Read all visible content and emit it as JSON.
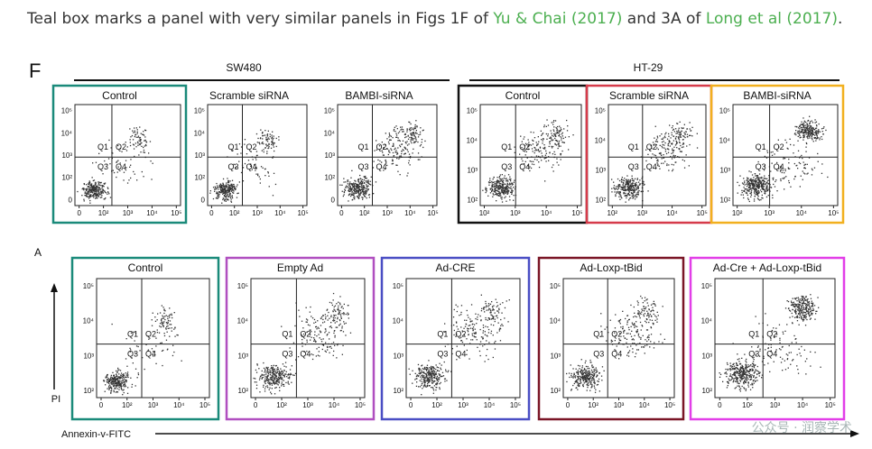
{
  "caption": {
    "prefix": "Teal box marks a panel with very similar panels in Figs 1F of ",
    "link1": "Yu & Chai (2017)",
    "middle": " and 3A of ",
    "link2": "Long et al (2017)",
    "suffix": "."
  },
  "figF": {
    "letter": "F",
    "groups": [
      "SW480",
      "HT-29"
    ],
    "panels": [
      {
        "title": "Control",
        "box": "#1a8a7a",
        "density": "low"
      },
      {
        "title": "Scramble siRNA",
        "box": "",
        "density": "low"
      },
      {
        "title": "BAMBI-siRNA",
        "box": "",
        "density": "mid"
      },
      {
        "title": "Control",
        "box": "#111111",
        "density": "mid"
      },
      {
        "title": "Scramble siRNA",
        "box": "#d63b4a",
        "density": "mid"
      },
      {
        "title": "BAMBI-siRNA",
        "box": "#f2b01e",
        "density": "high"
      }
    ],
    "quadrants": [
      "Q1",
      "Q2",
      "Q3",
      "Q4"
    ],
    "x_ticks_sw": [
      "0",
      "10²",
      "10³",
      "10⁴",
      "10⁵"
    ],
    "x_ticks_ht": [
      "10²",
      "10³",
      "10⁴",
      "10⁵"
    ],
    "y_ticks_sw": [
      "10⁵",
      "10⁴",
      "10³",
      "10²",
      "0"
    ],
    "y_ticks_ht": [
      "10⁵",
      "10⁴",
      "10³",
      "10²"
    ]
  },
  "figA": {
    "letter": "A",
    "panels": [
      {
        "title": "Control",
        "box": "#1a8a7a",
        "density": "low"
      },
      {
        "title": "Empty Ad",
        "box": "#b04fc0",
        "density": "mid"
      },
      {
        "title": "Ad-CRE",
        "box": "#4a4ec4",
        "density": "mid"
      },
      {
        "title": "Ad-Loxp-tBid",
        "box": "#7a1526",
        "density": "mid"
      },
      {
        "title": "Ad-Cre + Ad-Loxp-tBid",
        "box": "#e23ee8",
        "density": "high"
      }
    ],
    "quadrants": [
      "Q1",
      "Q2",
      "Q3",
      "Q4"
    ],
    "x_ticks": [
      "0",
      "10²",
      "10³",
      "10⁴",
      "10⁵"
    ],
    "y_ticks": [
      "10⁵",
      "10⁴",
      "10³",
      "10²"
    ],
    "y_axis_label": "PI",
    "x_axis_label": "Annexin-v-FITC"
  },
  "watermark": "公众号 · 润察学术"
}
